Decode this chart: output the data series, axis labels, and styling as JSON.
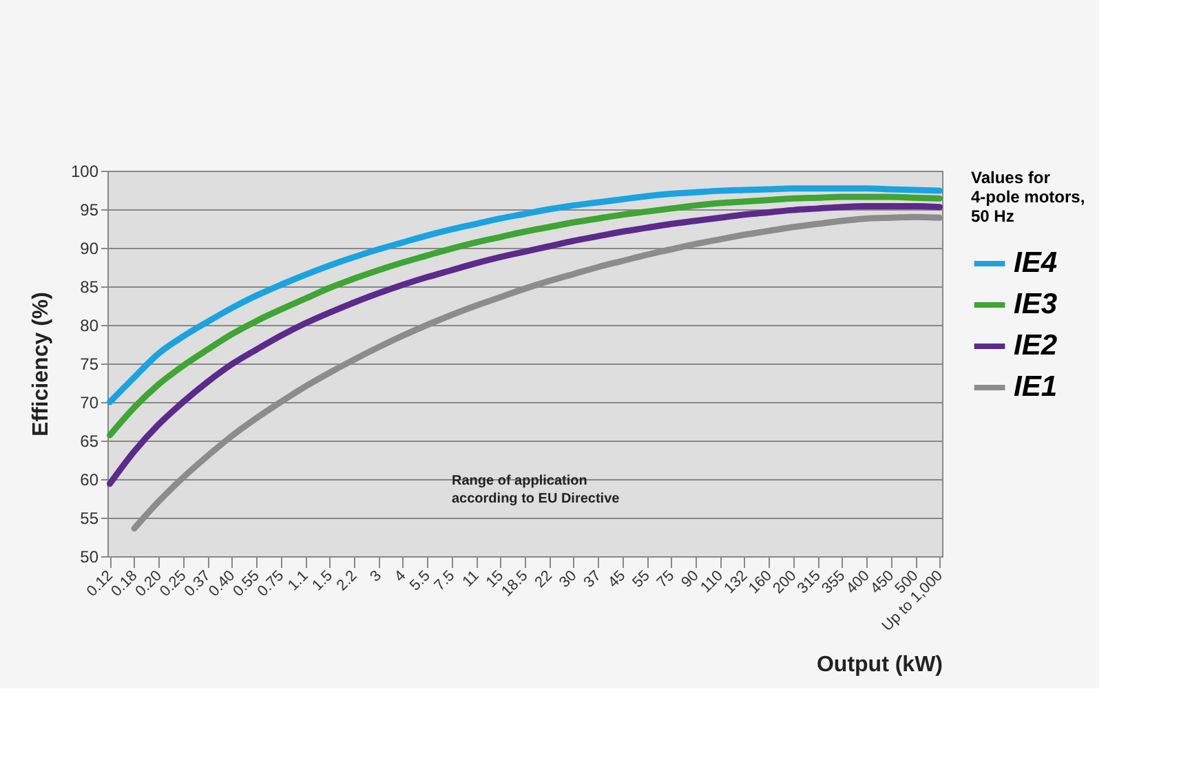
{
  "chart_data": {
    "type": "line",
    "xlabel": "Output (kW)",
    "ylabel": "Efficiency (%)",
    "legend_title": "Values for 4-pole motors, 50 Hz",
    "categories": [
      "0.12",
      "0.18",
      "0.20",
      "0.25",
      "0.37",
      "0.40",
      "0.55",
      "0.75",
      "1.1",
      "1.5",
      "2.2",
      "3",
      "4",
      "5.5",
      "7.5",
      "11",
      "15",
      "18.5",
      "22",
      "30",
      "37",
      "45",
      "55",
      "75",
      "90",
      "110",
      "132",
      "160",
      "200",
      "315",
      "355",
      "400",
      "450",
      "500",
      "Up to 1,000"
    ],
    "series": [
      {
        "name": "IE4",
        "color": "#1ba3e0",
        "values": [
          70,
          73.2,
          76.3,
          78.5,
          80.4,
          82.2,
          83.8,
          85.2,
          86.5,
          87.7,
          88.8,
          89.8,
          90.7,
          91.6,
          92.4,
          93.1,
          93.8,
          94.4,
          95.0,
          95.5,
          95.9,
          96.3,
          96.7,
          97.0,
          97.2,
          97.4,
          97.5,
          97.6,
          97.7,
          97.7,
          97.7,
          97.7,
          97.6,
          97.5,
          97.4
        ]
      },
      {
        "name": "IE3",
        "color": "#3fa535",
        "values": [
          65.7,
          69.3,
          72.3,
          74.7,
          76.8,
          78.8,
          80.5,
          82.0,
          83.4,
          84.8,
          86.0,
          87.1,
          88.1,
          89.0,
          89.9,
          90.7,
          91.4,
          92.1,
          92.7,
          93.3,
          93.8,
          94.3,
          94.7,
          95.1,
          95.5,
          95.8,
          96.0,
          96.2,
          96.4,
          96.5,
          96.6,
          96.6,
          96.6,
          96.5,
          96.4
        ]
      },
      {
        "name": "IE2",
        "color": "#5c2a8a",
        "values": [
          59.4,
          63.6,
          67.1,
          70.0,
          72.6,
          74.9,
          76.8,
          78.6,
          80.2,
          81.6,
          82.9,
          84.1,
          85.2,
          86.2,
          87.1,
          88.0,
          88.8,
          89.5,
          90.2,
          90.9,
          91.5,
          92.1,
          92.6,
          93.1,
          93.5,
          93.9,
          94.3,
          94.6,
          94.9,
          95.1,
          95.3,
          95.4,
          95.4,
          95.4,
          95.3
        ]
      },
      {
        "name": "IE1",
        "color": "#8c8c8c",
        "values": [
          null,
          53.6,
          57.1,
          60.2,
          63.0,
          65.6,
          67.9,
          70.0,
          72.0,
          73.8,
          75.5,
          77.1,
          78.6,
          80.0,
          81.3,
          82.5,
          83.6,
          84.7,
          85.7,
          86.6,
          87.5,
          88.3,
          89.1,
          89.8,
          90.5,
          91.1,
          91.7,
          92.2,
          92.7,
          93.1,
          93.5,
          93.8,
          93.9,
          94.0,
          93.9
        ]
      }
    ],
    "ylim": [
      50,
      100
    ],
    "yticks": [
      50,
      55,
      60,
      65,
      70,
      75,
      80,
      85,
      90,
      95,
      100
    ],
    "grid": "y",
    "legend": "top right",
    "annotations": [
      "Range of application according to EU Directive"
    ]
  }
}
